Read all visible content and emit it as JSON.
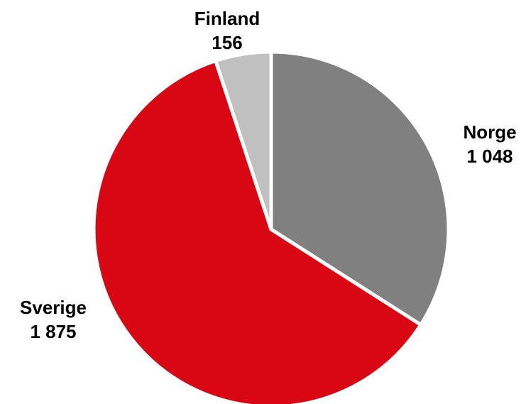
{
  "chart_data": {
    "type": "pie",
    "categories": [
      "Norge",
      "Sverige",
      "Finland"
    ],
    "values": [
      1048,
      1875,
      156
    ],
    "value_labels": [
      "1 048",
      "1 875",
      "156"
    ],
    "colors": [
      "#808080",
      "#d90714",
      "#c0c0c0"
    ]
  }
}
